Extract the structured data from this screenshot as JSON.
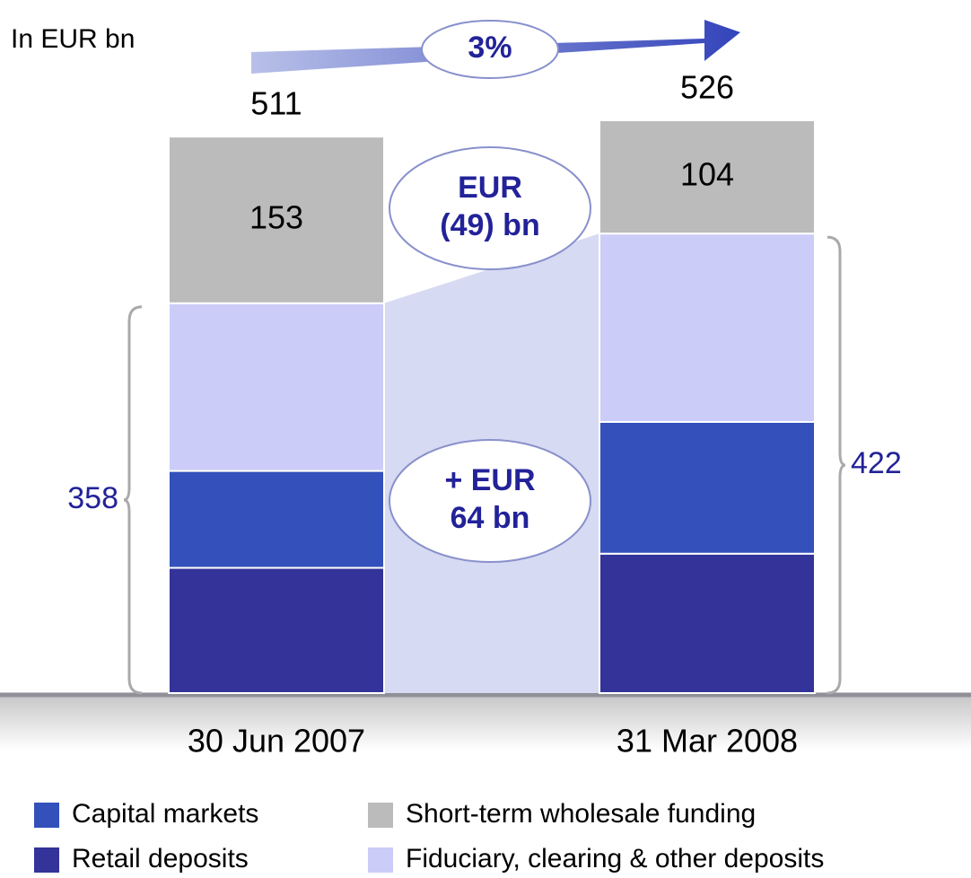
{
  "chart_data": {
    "type": "stacked_bar",
    "subtitle": "In EUR bn",
    "categories": [
      "30 Jun 2007",
      "31 Mar 2008"
    ],
    "series": [
      {
        "name": "Retail deposits",
        "color": "#333399",
        "values": [
          115,
          128
        ]
      },
      {
        "name": "Capital markets",
        "color": "#3350bb",
        "values": [
          89,
          121
        ]
      },
      {
        "name": "Fiduciary, clearing & other deposits",
        "color": "#ccccf8",
        "values": [
          154,
          173
        ]
      },
      {
        "name": "Short-term wholesale funding",
        "color": "#bbbbbb",
        "values": [
          153,
          104
        ]
      }
    ],
    "totals": [
      511,
      526
    ],
    "subtotals": [
      358,
      422
    ],
    "annotations": [
      {
        "lines": [
          "3%"
        ]
      },
      {
        "lines": [
          "EUR",
          "(49) bn"
        ]
      },
      {
        "lines": [
          "+ EUR",
          "64 bn"
        ]
      }
    ]
  }
}
